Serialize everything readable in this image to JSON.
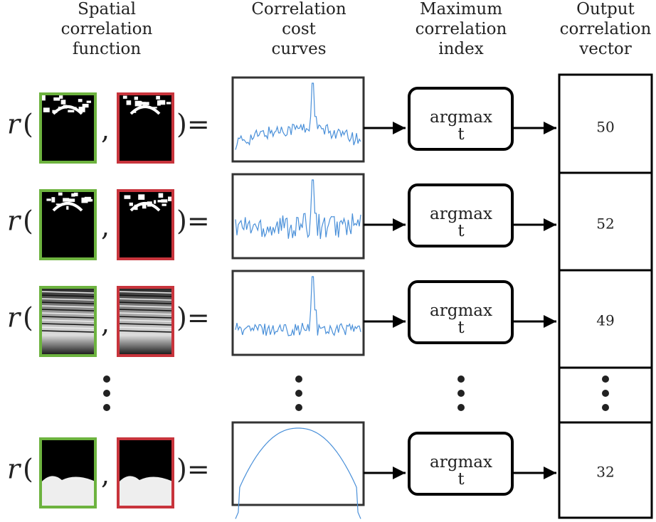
{
  "header": {
    "columns": [
      [
        "Spatial",
        "correlation",
        "function"
      ],
      [
        "Correlation",
        "cost",
        "curves"
      ],
      [
        "Maximum",
        "correlation",
        "index"
      ],
      [
        "Output",
        "correlation",
        "vector"
      ]
    ]
  },
  "symbols": {
    "func": "r",
    "open": "(",
    "sep": ",",
    "close": ")="
  },
  "rows": [
    {
      "argmax": [
        "argmax",
        "t"
      ],
      "output": "50"
    },
    {
      "argmax": [
        "argmax",
        "t"
      ],
      "output": "52"
    },
    {
      "argmax": [
        "argmax",
        "t"
      ],
      "output": "49"
    },
    {
      "argmax": [
        "argmax",
        "t"
      ],
      "output": "32"
    }
  ]
}
